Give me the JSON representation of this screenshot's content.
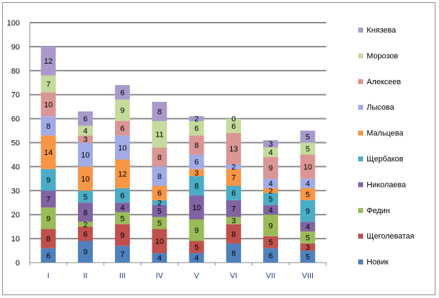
{
  "chart_data": {
    "type": "bar",
    "stacked": true,
    "title": "",
    "xlabel": "",
    "ylabel": "",
    "ylim": [
      0,
      100
    ],
    "yticks": [
      0,
      10,
      20,
      30,
      40,
      50,
      60,
      70,
      80,
      90,
      100
    ],
    "grid": true,
    "legend_position": "right",
    "categories": [
      "I",
      "II",
      "III",
      "IV",
      "V",
      "VI",
      "VII",
      "VIII"
    ],
    "series": [
      {
        "name": "Новик",
        "color": "#4F81BD",
        "values": [
          6,
          9,
          7,
          4,
          4,
          8,
          6,
          5
        ]
      },
      {
        "name": "Щеголеватая",
        "color": "#C0504D",
        "values": [
          8,
          6,
          9,
          10,
          5,
          8,
          5,
          3
        ]
      },
      {
        "name": "Федин",
        "color": "#9BBB59",
        "values": [
          9,
          2,
          5,
          5,
          9,
          3,
          9,
          5
        ]
      },
      {
        "name": "Николаева",
        "color": "#8064A2",
        "values": [
          7,
          8,
          4,
          5,
          10,
          7,
          4,
          4
        ]
      },
      {
        "name": "Щербаков",
        "color": "#4BACC6",
        "values": [
          9,
          5,
          6,
          2,
          8,
          6,
          5,
          9
        ]
      },
      {
        "name": "Мальцева",
        "color": "#F79646",
        "values": [
          14,
          10,
          12,
          6,
          3,
          7,
          2,
          5
        ]
      },
      {
        "name": "Лысова",
        "color": "#A1ACE6",
        "values": [
          8,
          10,
          10,
          8,
          6,
          2,
          4,
          4
        ]
      },
      {
        "name": "Алексеев",
        "color": "#DA9694",
        "values": [
          10,
          3,
          6,
          8,
          8,
          13,
          9,
          10
        ]
      },
      {
        "name": "Морозов",
        "color": "#C4DB9C",
        "values": [
          7,
          4,
          9,
          11,
          6,
          6,
          4,
          5
        ]
      },
      {
        "name": "Князева",
        "color": "#A89BCB",
        "values": [
          12,
          6,
          6,
          8,
          2,
          0,
          3,
          5
        ]
      }
    ]
  }
}
